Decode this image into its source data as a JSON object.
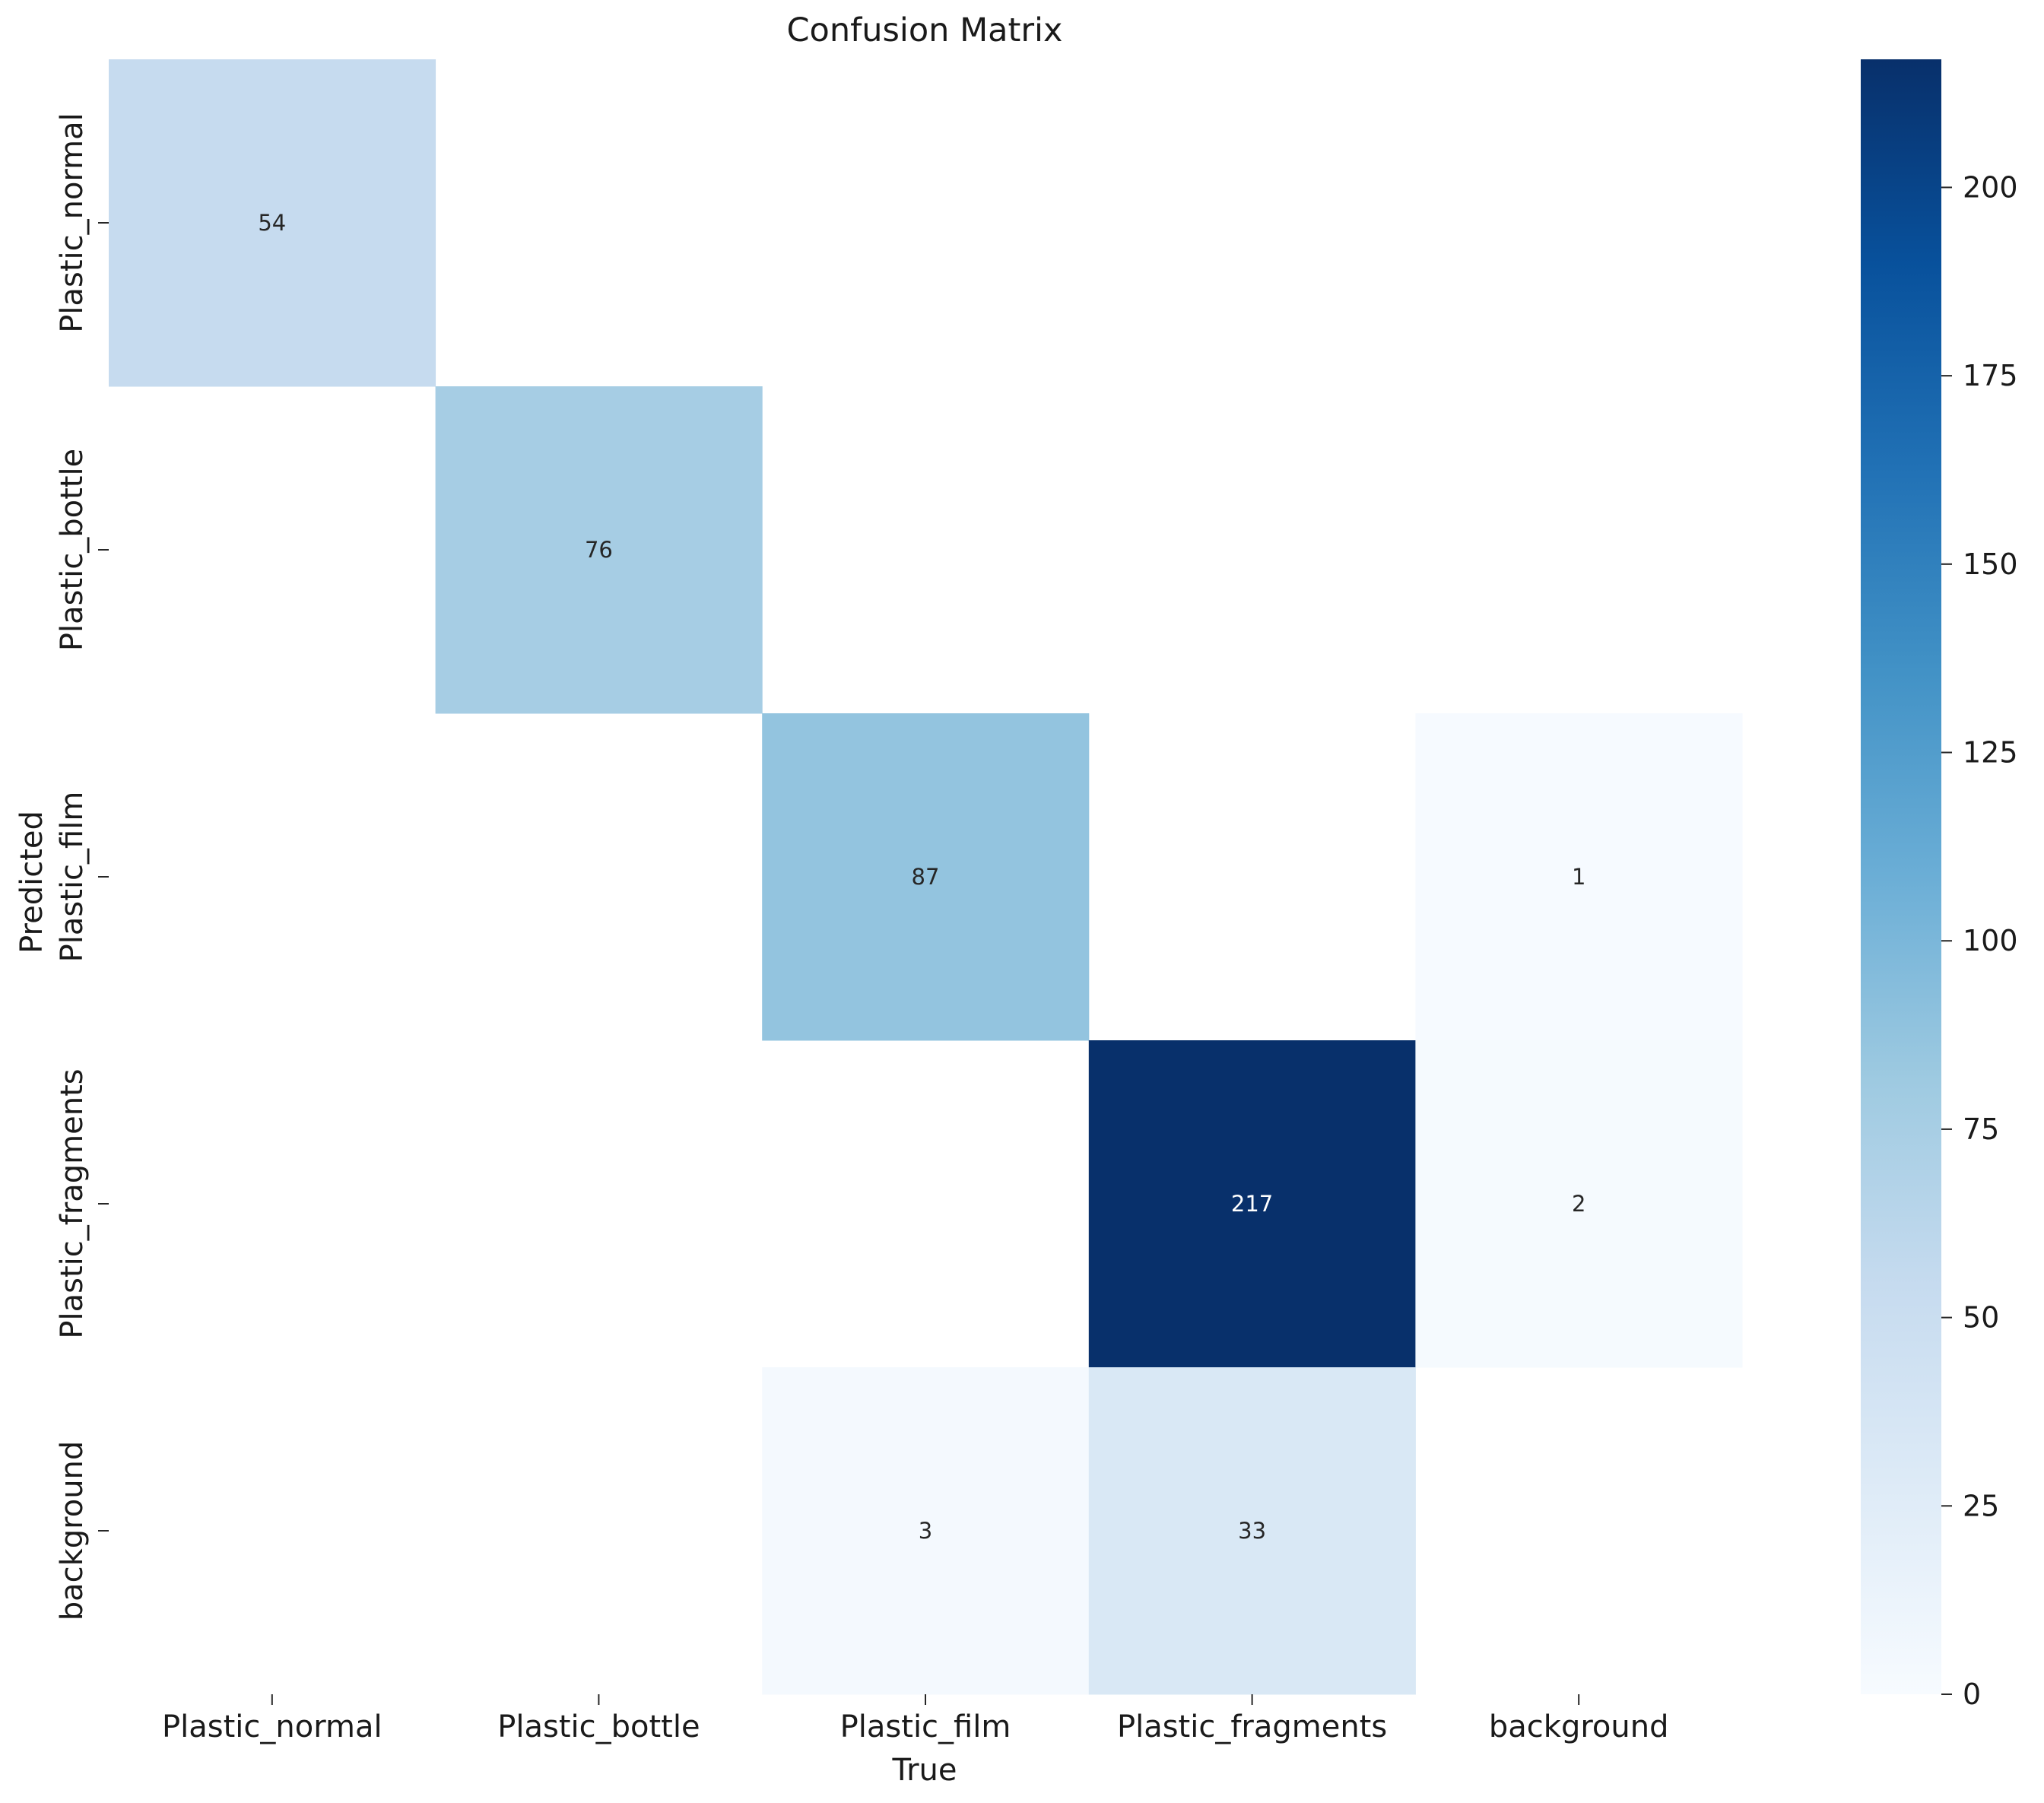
{
  "chart_data": {
    "type": "heatmap",
    "title": "Confusion Matrix",
    "xlabel": "True",
    "ylabel": "Predicted",
    "x_categories": [
      "Plastic_normal",
      "Plastic_bottle",
      "Plastic_film",
      "Plastic_fragments",
      "background"
    ],
    "y_categories": [
      "Plastic_normal",
      "Plastic_bottle",
      "Plastic_film",
      "Plastic_fragments",
      "background"
    ],
    "values": [
      [
        54,
        null,
        null,
        null,
        null
      ],
      [
        null,
        76,
        null,
        null,
        null
      ],
      [
        null,
        null,
        87,
        null,
        1
      ],
      [
        null,
        null,
        null,
        217,
        2
      ],
      [
        null,
        null,
        3,
        33,
        null
      ]
    ],
    "colormap": "Blues",
    "colorbar": {
      "range": [
        0,
        217
      ],
      "ticks": [
        0,
        25,
        50,
        75,
        100,
        125,
        150,
        175,
        200
      ]
    },
    "grid": false
  }
}
